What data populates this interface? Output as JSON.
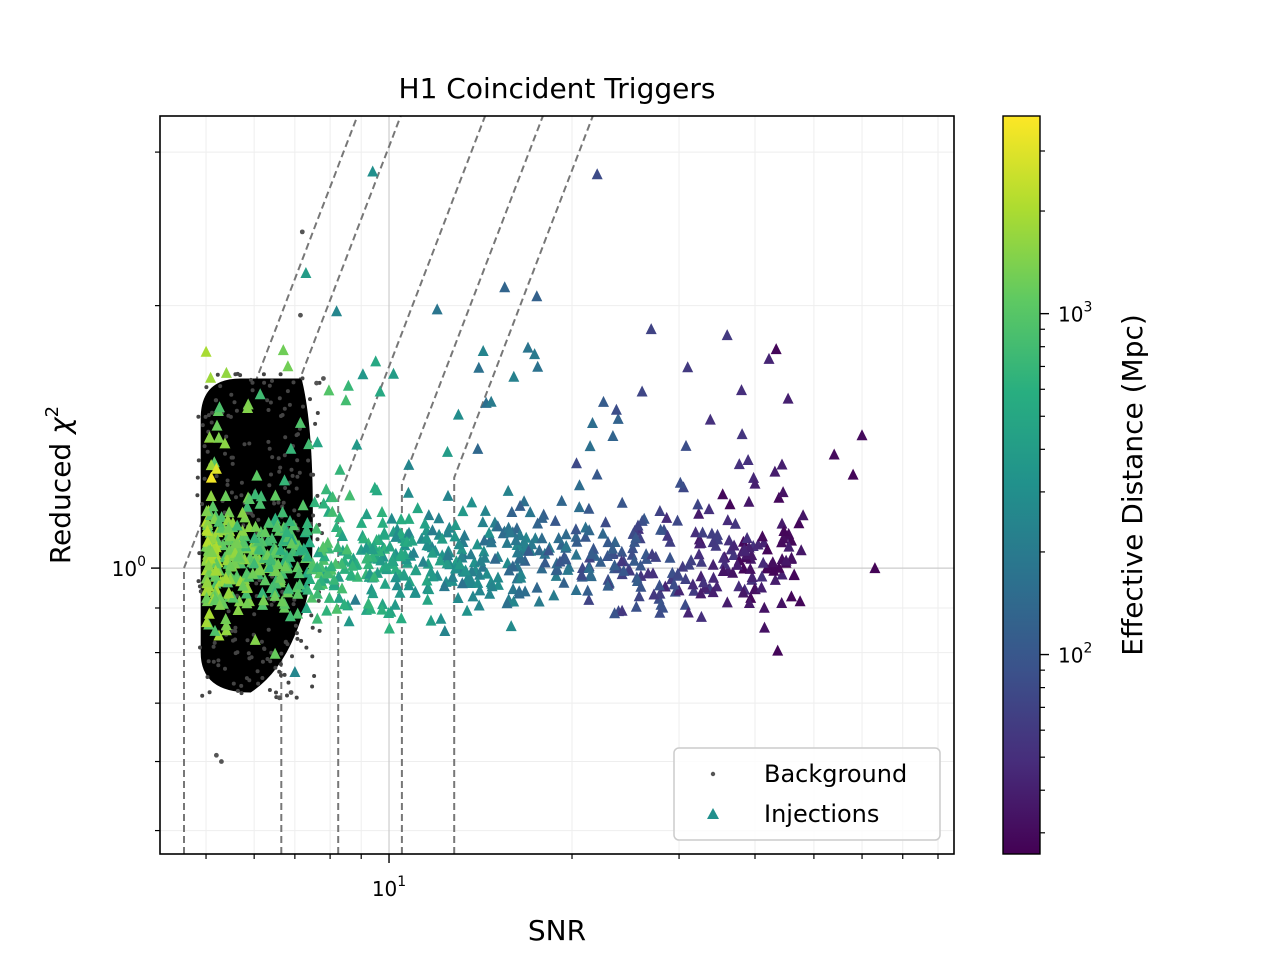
{
  "chart_data": {
    "type": "scatter",
    "title": "H1 Coincident Triggers",
    "xlabel": "SNR",
    "ylabel_text": "Reduced ",
    "ylabel_symbol": "χ",
    "ylabel_sup": "2",
    "x_scale": "log",
    "y_scale": "log",
    "xlim": [
      4.2,
      85
    ],
    "ylim": [
      0.47,
      3.3
    ],
    "x_ticks": [
      {
        "value": 10,
        "base": "10",
        "exp": "1"
      }
    ],
    "y_ticks": [
      {
        "value": 1,
        "base": "10",
        "exp": "0"
      }
    ],
    "grid": "major and minor, light gray",
    "legend": {
      "position": "bottom-right",
      "entries": [
        {
          "label": "Background",
          "marker": "dot",
          "color": "#555555"
        },
        {
          "label": "Injections",
          "marker": "triangle",
          "color": "#21908d"
        }
      ]
    },
    "colorbar": {
      "label": "Effective Distance (Mpc)",
      "scale": "log",
      "colormap": "viridis",
      "range": [
        26,
        3800
      ],
      "ticks": [
        {
          "value": 100,
          "base": "10",
          "exp": "2"
        },
        {
          "value": 1000,
          "base": "10",
          "exp": "3"
        }
      ]
    },
    "threshold_curves": [
      {
        "snr_start": 4.6,
        "chisq_start": 1.0,
        "chisq_end": 3.3,
        "vertical_to": 0.47
      },
      {
        "snr_start": 6.65,
        "chisq_start": 1.45,
        "chisq_end": 3.3,
        "vertical_to": 0.47
      },
      {
        "snr_start": 8.25,
        "chisq_start": 1.2,
        "chisq_end": 3.3,
        "vertical_to": 0.47
      },
      {
        "snr_start": 10.5,
        "chisq_start": 1.25,
        "chisq_end": 3.3,
        "vertical_to": 0.47
      },
      {
        "snr_start": 12.8,
        "chisq_start": 1.27,
        "chisq_end": 3.3,
        "vertical_to": 0.47
      }
    ],
    "background_region": {
      "snr_min": 4.9,
      "snr_max": 7.6,
      "chisq_min": 0.72,
      "chisq_max": 1.65,
      "outliers": [
        {
          "snr": 7.2,
          "chisq": 2.43
        },
        {
          "snr": 7.15,
          "chisq": 1.95
        },
        {
          "snr": 5.3,
          "chisq": 0.6
        },
        {
          "snr": 5.2,
          "chisq": 0.61
        },
        {
          "snr": 6.9,
          "chisq": 0.72
        },
        {
          "snr": 7.6,
          "chisq": 1.63
        },
        {
          "snr": 7.8,
          "chisq": 1.65
        },
        {
          "snr": 6.6,
          "chisq": 0.71
        }
      ]
    },
    "injections_notable": [
      {
        "snr": 9.4,
        "chisq": 2.85,
        "distance": 300
      },
      {
        "snr": 22.0,
        "chisq": 2.83,
        "distance": 80
      },
      {
        "snr": 7.3,
        "chisq": 2.18,
        "distance": 400
      },
      {
        "snr": 8.2,
        "chisq": 1.97,
        "distance": 250
      },
      {
        "snr": 12.0,
        "chisq": 1.98,
        "distance": 180
      },
      {
        "snr": 17.5,
        "chisq": 2.05,
        "distance": 120
      },
      {
        "snr": 15.5,
        "chisq": 2.1,
        "distance": 130
      },
      {
        "snr": 27.0,
        "chisq": 1.88,
        "distance": 70
      },
      {
        "snr": 36.0,
        "chisq": 1.85,
        "distance": 60
      },
      {
        "snr": 60.0,
        "chisq": 1.42,
        "distance": 30
      },
      {
        "snr": 58.0,
        "chisq": 1.28,
        "distance": 28
      },
      {
        "snr": 63.0,
        "chisq": 1.0,
        "distance": 27
      },
      {
        "snr": 54.0,
        "chisq": 1.35,
        "distance": 30
      },
      {
        "snr": 41.0,
        "chisq": 0.95,
        "distance": 40
      },
      {
        "snr": 45.0,
        "chisq": 1.02,
        "distance": 35
      },
      {
        "snr": 5.1,
        "chisq": 1.27,
        "distance": 3500
      },
      {
        "snr": 5.2,
        "chisq": 1.3,
        "distance": 3000
      },
      {
        "snr": 7.0,
        "chisq": 0.76,
        "distance": 250
      },
      {
        "snr": 8.8,
        "chisq": 0.92,
        "distance": 200
      },
      {
        "snr": 14.0,
        "chisq": 1.37,
        "distance": 140
      },
      {
        "snr": 31.0,
        "chisq": 1.7,
        "distance": 60
      },
      {
        "snr": 38.0,
        "chisq": 1.6,
        "distance": 50
      },
      {
        "snr": 48.0,
        "chisq": 1.15,
        "distance": 35
      },
      {
        "snr": 40.0,
        "chisq": 1.25,
        "distance": 40
      }
    ],
    "injections_cloud": {
      "snr_min": 5.0,
      "snr_max": 48.0,
      "chisq_center": 1.02,
      "description_note": ""
    }
  }
}
